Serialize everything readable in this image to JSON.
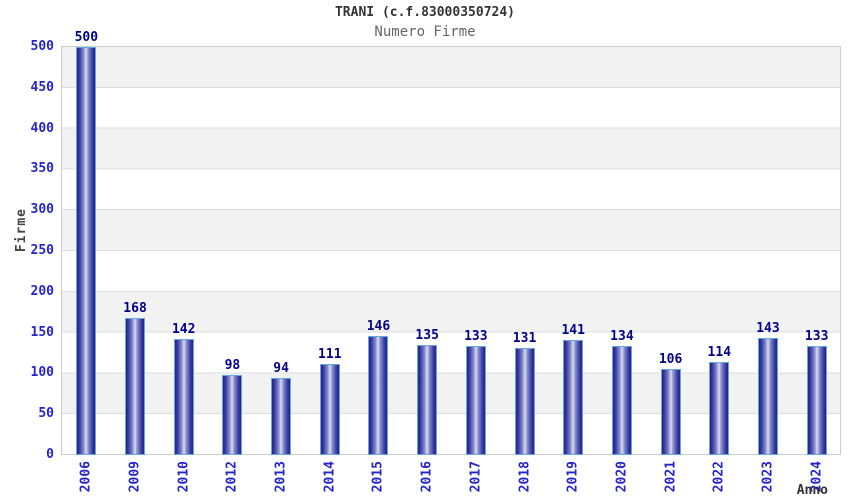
{
  "title": "TRANI (c.f.83000350724)",
  "subtitle": "Numero Firme",
  "chart_data": {
    "type": "bar",
    "title": "TRANI (c.f.83000350724)",
    "subtitle": "Numero Firme",
    "xlabel": "Anno",
    "ylabel": "Firme",
    "categories": [
      "2006",
      "2009",
      "2010",
      "2012",
      "2013",
      "2014",
      "2015",
      "2016",
      "2017",
      "2018",
      "2019",
      "2020",
      "2021",
      "2022",
      "2023",
      "2024"
    ],
    "values": [
      500,
      168,
      142,
      98,
      94,
      111,
      146,
      135,
      133,
      131,
      141,
      134,
      106,
      114,
      143,
      133
    ],
    "ylim": [
      0,
      500
    ],
    "y_ticks": [
      0,
      50,
      100,
      150,
      200,
      250,
      300,
      350,
      400,
      450,
      500
    ],
    "grid": true,
    "legend_position": "none",
    "colors": {
      "bar_edge": "#23238e",
      "bar_mid": "#8189c8",
      "bar_shade": "#3535a0",
      "bar_highlight": "#d9dcf0",
      "bar_border": "#64a8e0",
      "value_label": "#00008b",
      "tick_label": "#2424cf",
      "title": "#333333",
      "subtitle": "#666666",
      "band_gray": "#f2f2f2",
      "band_white": "#ffffff",
      "gridline": "#dddddd",
      "plot_border": "#cccccc"
    }
  }
}
